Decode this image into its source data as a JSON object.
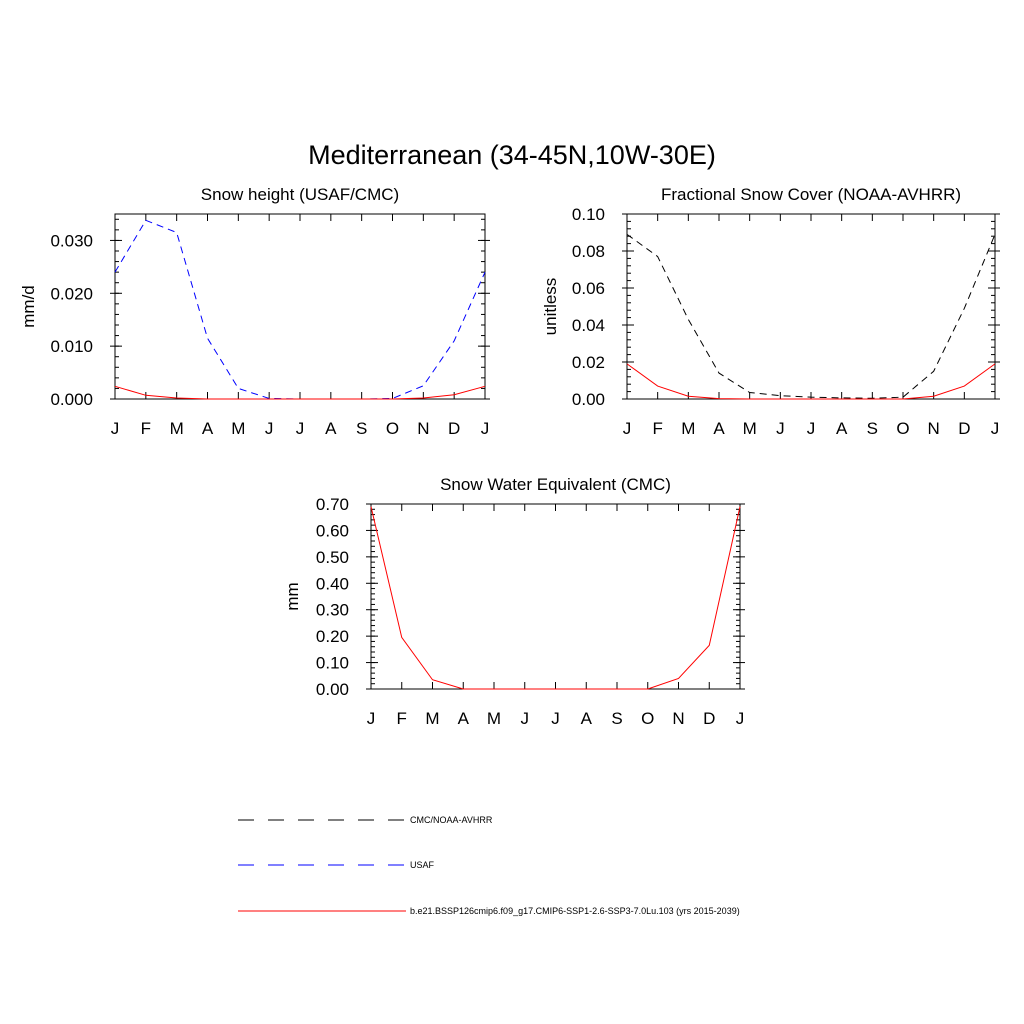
{
  "title": "Mediterranean (34-45N,10W-30E)",
  "colors": {
    "model": "#ff0000",
    "usaf": "#0000ff",
    "obs": "#000000"
  },
  "legend": [
    {
      "label": "CMC/NOAA-AVHRR",
      "color": "#000000",
      "style": "dashed"
    },
    {
      "label": "USAF",
      "color": "#0000ff",
      "style": "dashed"
    },
    {
      "label": "b.e21.BSSP126cmip6.f09_g17.CMIP6-SSP1-2.6-SSP3-7.0Lu.103 (yrs 2015-2039)",
      "color": "#ff0000",
      "style": "solid"
    }
  ],
  "chart_data": [
    {
      "type": "line",
      "title": "Snow height (USAF/CMC)",
      "ylabel": "mm/d",
      "categories": [
        "J",
        "F",
        "M",
        "A",
        "M",
        "J",
        "J",
        "A",
        "S",
        "O",
        "N",
        "D",
        "J"
      ],
      "ylim": [
        0,
        0.035
      ],
      "yticks": [
        0.0,
        0.01,
        0.02,
        0.03
      ],
      "ytick_labels": [
        "0.000",
        "0.010",
        "0.020",
        "0.030"
      ],
      "series": [
        {
          "key": "usaf",
          "style": "dashed",
          "values": [
            0.024,
            0.0338,
            0.0315,
            0.0115,
            0.002,
            0.0001,
            0.0,
            0.0,
            0.0,
            0.0001,
            0.0025,
            0.011,
            0.024
          ]
        },
        {
          "key": "model",
          "style": "solid",
          "values": [
            0.0024,
            0.0007,
            0.0002,
            0.0,
            0.0,
            0.0,
            0.0,
            0.0,
            0.0,
            0.0,
            0.0002,
            0.0008,
            0.0024
          ]
        }
      ]
    },
    {
      "type": "line",
      "title": "Fractional Snow Cover (NOAA-AVHRR)",
      "ylabel": "unitless",
      "categories": [
        "J",
        "F",
        "M",
        "A",
        "M",
        "J",
        "J",
        "A",
        "S",
        "O",
        "N",
        "D",
        "J"
      ],
      "ylim": [
        0,
        0.1
      ],
      "yticks": [
        0.0,
        0.02,
        0.04,
        0.06,
        0.08,
        0.1
      ],
      "ytick_labels": [
        "0.00",
        "0.02",
        "0.04",
        "0.06",
        "0.08",
        "0.10"
      ],
      "series": [
        {
          "key": "obs",
          "style": "dashed",
          "values": [
            0.089,
            0.077,
            0.043,
            0.014,
            0.0035,
            0.0018,
            0.001,
            0.0006,
            0.0004,
            0.001,
            0.015,
            0.049,
            0.089
          ]
        },
        {
          "key": "model",
          "style": "solid",
          "values": [
            0.019,
            0.007,
            0.0015,
            0.0002,
            0.0,
            0.0,
            0.0,
            0.0,
            0.0,
            0.0,
            0.0015,
            0.007,
            0.019
          ]
        }
      ]
    },
    {
      "type": "line",
      "title": "Snow Water Equivalent (CMC)",
      "ylabel": "mm",
      "categories": [
        "J",
        "F",
        "M",
        "A",
        "M",
        "J",
        "J",
        "A",
        "S",
        "O",
        "N",
        "D",
        "J"
      ],
      "ylim": [
        0,
        0.7
      ],
      "yticks": [
        0.0,
        0.1,
        0.2,
        0.3,
        0.4,
        0.5,
        0.6,
        0.7
      ],
      "ytick_labels": [
        "0.00",
        "0.10",
        "0.20",
        "0.30",
        "0.40",
        "0.50",
        "0.60",
        "0.70"
      ],
      "series": [
        {
          "key": "obs",
          "style": "dashed",
          "values": [
            0.0,
            0.0,
            0.0,
            0.0,
            0.0,
            0.0,
            0.0,
            0.0,
            0.0,
            0.0,
            0.0,
            0.0,
            0.0
          ]
        },
        {
          "key": "model",
          "style": "solid",
          "values": [
            0.69,
            0.195,
            0.035,
            0.0,
            0.0,
            0.0,
            0.0,
            0.0,
            0.0,
            0.0,
            0.04,
            0.165,
            0.69
          ]
        }
      ]
    }
  ]
}
